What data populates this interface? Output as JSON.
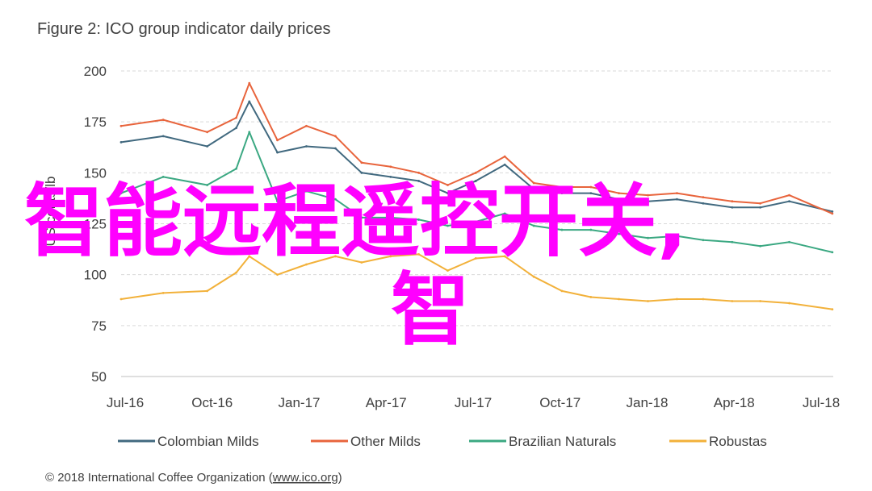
{
  "chart_data": {
    "type": "line",
    "title": "Figure 2: ICO group indicator daily prices",
    "ylabel": "US cents/lb",
    "ylim": [
      50,
      200
    ],
    "yticks": [
      50,
      75,
      100,
      125,
      150,
      175,
      200
    ],
    "xlim": [
      "2016-07-01",
      "2018-08-01"
    ],
    "grid": "horizontal dashed",
    "legend_position": "bottom",
    "x_tick_labels": [
      "Jul-16",
      "Oct-16",
      "Jan-17",
      "Apr-17",
      "Jul-17",
      "Oct-17",
      "Jan-18",
      "Apr-18",
      "Jul-18"
    ],
    "x": [
      "2016-07-01",
      "2016-08-15",
      "2016-10-01",
      "2016-11-01",
      "2016-11-15",
      "2016-12-15",
      "2017-01-15",
      "2017-02-15",
      "2017-03-15",
      "2017-04-15",
      "2017-05-15",
      "2017-06-15",
      "2017-07-15",
      "2017-08-15",
      "2017-09-15",
      "2017-10-15",
      "2017-11-15",
      "2017-12-15",
      "2018-01-15",
      "2018-02-15",
      "2018-03-15",
      "2018-04-15",
      "2018-05-15",
      "2018-06-15",
      "2018-07-31"
    ],
    "series": [
      {
        "name": "Colombian Milds",
        "color": "#41697f",
        "values": [
          165,
          168,
          163,
          172,
          185,
          160,
          163,
          162,
          150,
          148,
          146,
          140,
          146,
          154,
          142,
          140,
          140,
          137,
          136,
          137,
          135,
          133,
          133,
          136,
          131
        ]
      },
      {
        "name": "Other Milds",
        "color": "#e8643c",
        "values": [
          173,
          176,
          170,
          177,
          194,
          166,
          173,
          168,
          155,
          153,
          150,
          144,
          150,
          158,
          145,
          143,
          143,
          140,
          139,
          140,
          138,
          136,
          135,
          139,
          130
        ]
      },
      {
        "name": "Brazilian Naturals",
        "color": "#3ba882",
        "values": [
          140,
          148,
          144,
          152,
          170,
          136,
          141,
          137,
          128,
          128,
          127,
          124,
          126,
          130,
          124,
          122,
          122,
          120,
          118,
          119,
          117,
          116,
          114,
          116,
          111
        ]
      },
      {
        "name": "Robustas",
        "color": "#f2b13a",
        "values": [
          88,
          91,
          92,
          101,
          109,
          100,
          105,
          109,
          106,
          109,
          110,
          102,
          108,
          109,
          99,
          92,
          89,
          88,
          87,
          88,
          88,
          87,
          87,
          86,
          83
        ]
      }
    ]
  },
  "footer": {
    "text_before_link": "© 2018 International Coffee Organization (",
    "link": "www.ico.org",
    "text_after_link": ")"
  },
  "overlay": {
    "line1": "智能远程遥控开关,",
    "line2": "智",
    "color": "#ff00ff"
  }
}
